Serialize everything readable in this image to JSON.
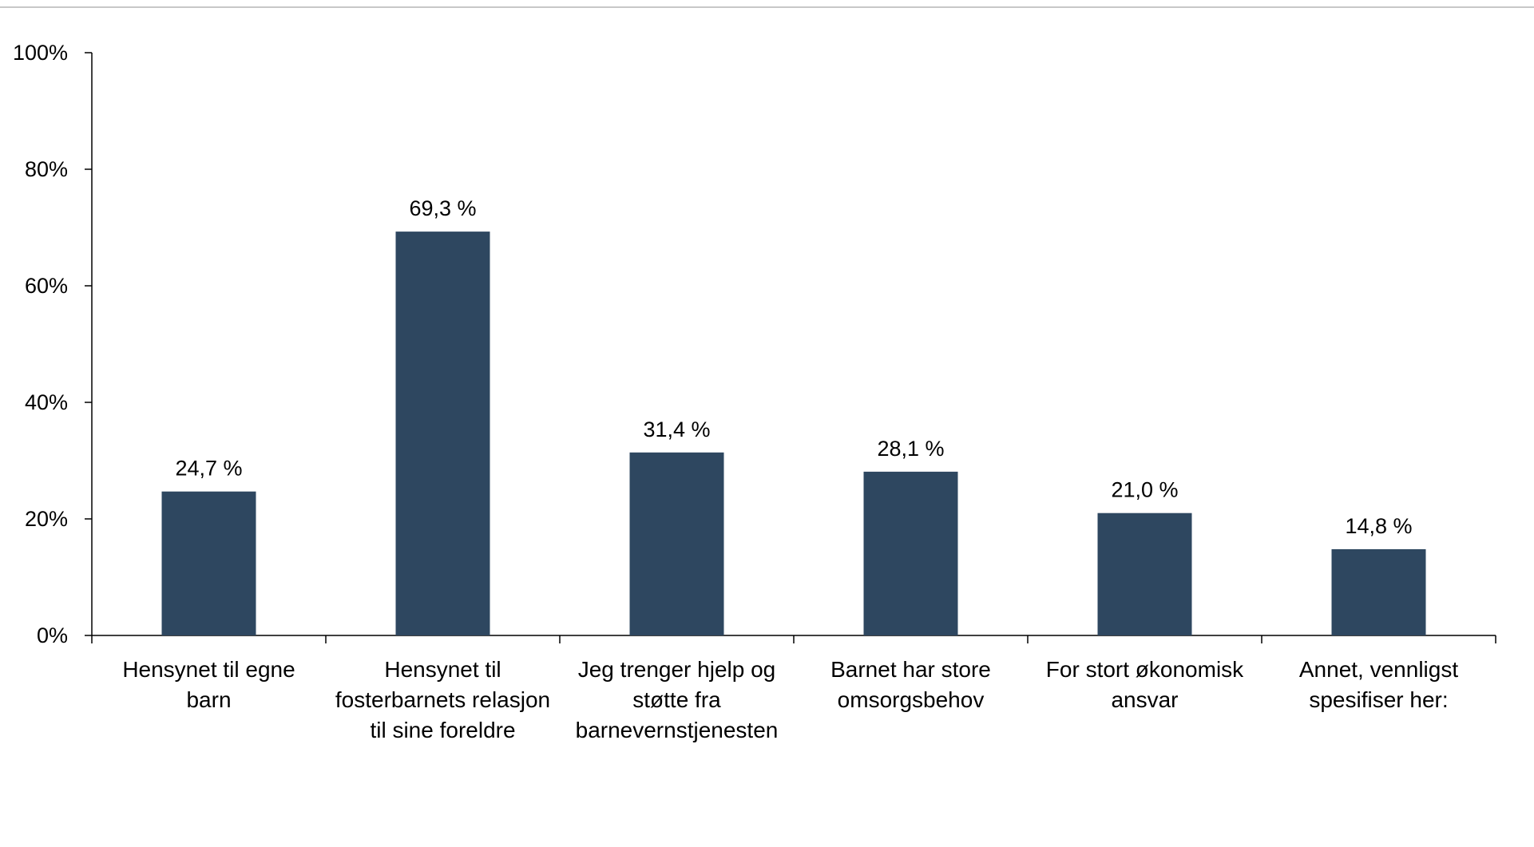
{
  "chart_data": {
    "type": "bar",
    "categories": [
      [
        "Hensynet til egne",
        "barn"
      ],
      [
        "Hensynet til",
        "fosterbarnets relasjon",
        "til sine foreldre"
      ],
      [
        "Jeg trenger hjelp og",
        "støtte fra",
        "barnevernstjenesten"
      ],
      [
        "Barnet har store",
        "omsorgsbehov"
      ],
      [
        "For stort økonomisk",
        "ansvar"
      ],
      [
        "Annet, vennligst",
        "spesifiser her:"
      ]
    ],
    "values": [
      24.7,
      69.3,
      31.4,
      28.1,
      21.0,
      14.8
    ],
    "data_labels": [
      "24,7 %",
      "69,3 %",
      "31,4 %",
      "28,1 %",
      "21,0 %",
      "14,8 %"
    ],
    "yticks": [
      0,
      20,
      40,
      60,
      80,
      100
    ],
    "ytick_labels": [
      "0%",
      "20%",
      "40%",
      "60%",
      "80%",
      "100%"
    ],
    "ylim": [
      0,
      100
    ],
    "title": "",
    "xlabel": "",
    "ylabel": "",
    "grid": false,
    "legend": "none",
    "bar_color": "#2e4760"
  }
}
